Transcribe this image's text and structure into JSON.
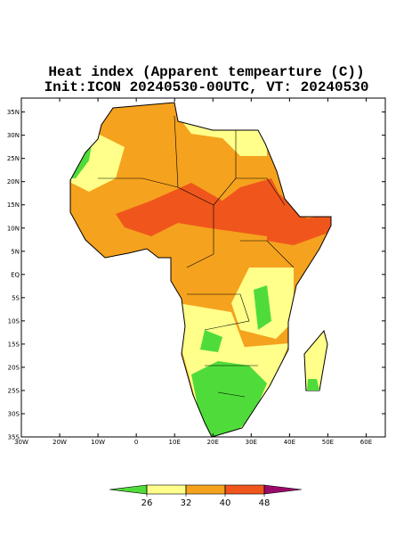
{
  "map": {
    "title": "Heat index (Apparent tempearture (C))",
    "subtitle": "Init:ICON 20240530-00UTC, VT: 20240530",
    "xlim": [
      -30,
      65
    ],
    "ylim": [
      -35,
      38
    ],
    "lat_ticks": [
      {
        "value": 35,
        "label": "35N"
      },
      {
        "value": 30,
        "label": "30N"
      },
      {
        "value": 25,
        "label": "25N"
      },
      {
        "value": 20,
        "label": "20N"
      },
      {
        "value": 15,
        "label": "15N"
      },
      {
        "value": 10,
        "label": "10N"
      },
      {
        "value": 5,
        "label": "5N"
      },
      {
        "value": 0,
        "label": "EQ"
      },
      {
        "value": -5,
        "label": "5S"
      },
      {
        "value": -10,
        "label": "10S"
      },
      {
        "value": -15,
        "label": "15S"
      },
      {
        "value": -20,
        "label": "20S"
      },
      {
        "value": -25,
        "label": "25S"
      },
      {
        "value": -30,
        "label": "30S"
      },
      {
        "value": -35,
        "label": "35S"
      }
    ],
    "lon_ticks": [
      {
        "value": -30,
        "label": "30W"
      },
      {
        "value": -20,
        "label": "20W"
      },
      {
        "value": -10,
        "label": "10W"
      },
      {
        "value": 0,
        "label": "0"
      },
      {
        "value": 10,
        "label": "10E"
      },
      {
        "value": 20,
        "label": "20E"
      },
      {
        "value": 30,
        "label": "30E"
      },
      {
        "value": 40,
        "label": "40E"
      },
      {
        "value": 50,
        "label": "50E"
      },
      {
        "value": 60,
        "label": "60E"
      }
    ],
    "colorbar": {
      "levels": [
        26,
        32,
        40,
        48
      ],
      "colors": [
        "#4fdc3a",
        "#ffff8a",
        "#f5a21e",
        "#f0561c",
        "#9a0a6a"
      ]
    }
  }
}
